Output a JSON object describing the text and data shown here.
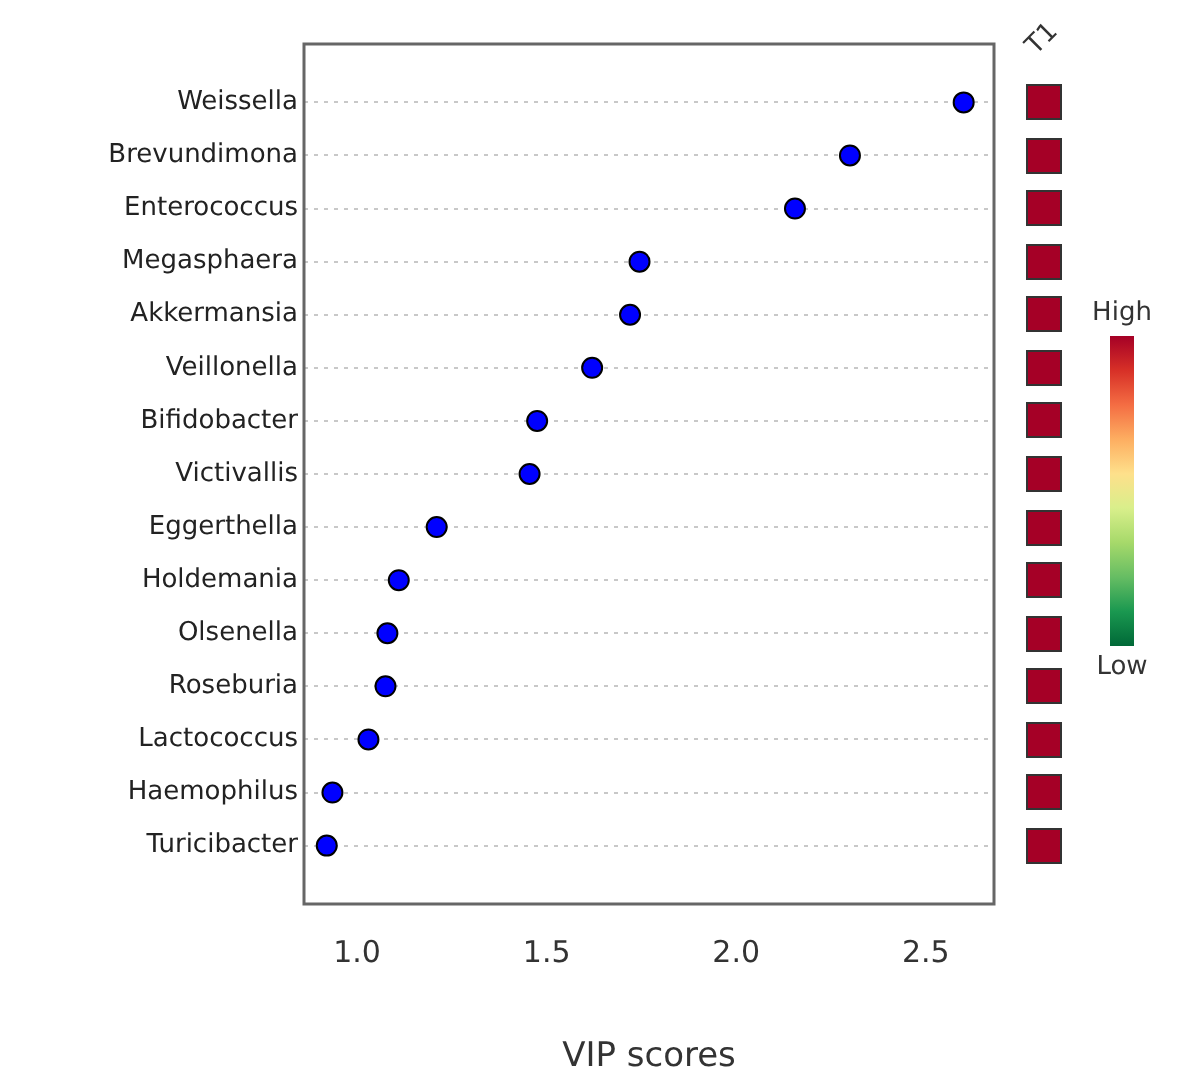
{
  "chart_data": [
    {
      "type": "scatter",
      "orientation": "horizontal",
      "xlabel": "VIP scores",
      "categories": [
        "Weissella",
        "Brevundimona",
        "Enterococcus",
        "Megasphaera",
        "Akkermansia",
        "Veillonella",
        "Bifidobacter",
        "Victivallis",
        "Eggerthella",
        "Holdemania",
        "Olsenella",
        "Roseburia",
        "Lactococcus",
        "Haemophilus",
        "Turicibacter"
      ],
      "values": [
        2.6,
        2.3,
        2.155,
        1.745,
        1.72,
        1.62,
        1.475,
        1.455,
        1.21,
        1.11,
        1.08,
        1.075,
        1.03,
        0.935,
        0.92
      ],
      "color": "#0000ff",
      "marker": "circle",
      "grid": "y",
      "xlim": [
        0.86,
        2.68
      ],
      "xticks": [
        {
          "value": 1,
          "label": "1.0"
        },
        {
          "value": 1.5,
          "label": "1.5"
        },
        {
          "value": 2,
          "label": "2.0"
        },
        {
          "value": 2.5,
          "label": "2.5"
        }
      ]
    },
    {
      "type": "other",
      "annotations": [
        "T1",
        "High",
        "Low"
      ]
    }
  ]
}
